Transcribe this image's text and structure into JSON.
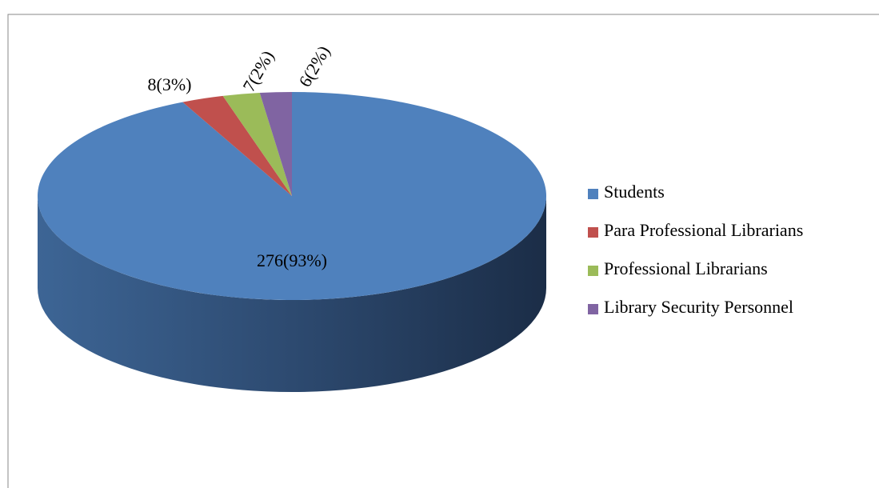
{
  "chart_data": {
    "type": "pie",
    "categories": [
      "Students",
      "Para Professional Librarians",
      "Professional Librarians",
      "Library Security Personnel"
    ],
    "values": [
      276,
      8,
      7,
      6
    ],
    "value_labels": [
      "276(93%)",
      "8(3%)",
      "7(2%)",
      "6(2%)"
    ],
    "colors": [
      "#4f81bd",
      "#c0504d",
      "#9bbb59",
      "#8064a2"
    ],
    "legend": "right"
  }
}
